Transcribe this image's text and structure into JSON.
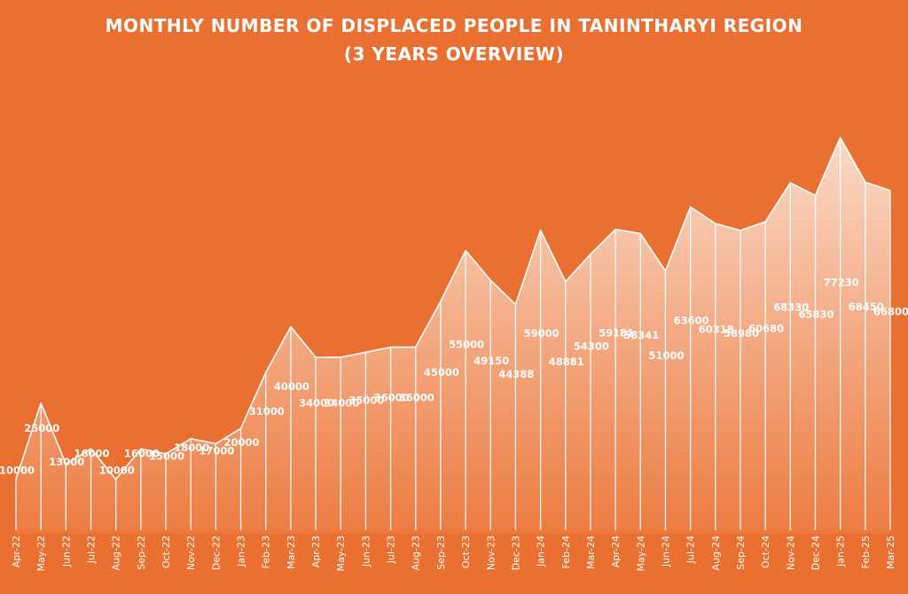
{
  "chart_data": {
    "type": "area",
    "title": "MONTHLY NUMBER OF DISPLACED PEOPLE IN TANINTHARYI REGION",
    "subtitle": "(3 YEARS OVERVIEW)",
    "categories": [
      "Apr-22",
      "May-22",
      "Jun-22",
      "Jul-22",
      "Aug-22",
      "Sep-22",
      "Oct-22",
      "Nov-22",
      "Dec-22",
      "Jan-23",
      "Feb-23",
      "Mar-23",
      "Apr-23",
      "May-23",
      "Jun-23",
      "Jul-23",
      "Aug-23",
      "Sep-23",
      "Oct-23",
      "Nov-23",
      "Dec-23",
      "Jan-24",
      "Feb-24",
      "Mar-24",
      "Apr-24",
      "May-24",
      "Jun-24",
      "Jul-24",
      "Aug-24",
      "Sep-24",
      "Oct-24",
      "Nov-24",
      "Dec-24",
      "Jan-25",
      "Feb-25",
      "Mar-25"
    ],
    "values": [
      10000,
      25000,
      13000,
      16000,
      10000,
      16000,
      15000,
      18000,
      17000,
      20000,
      31000,
      40000,
      34000,
      34000,
      35000,
      36000,
      36000,
      45000,
      55000,
      49150,
      44388,
      59000,
      48881,
      54300,
      59181,
      58341,
      51000,
      63600,
      60318,
      58980,
      60680,
      68330,
      65830,
      77230,
      68450,
      66800
    ],
    "labels": [
      "10000",
      "25000",
      "13000",
      "16000",
      "10000",
      "16000",
      "15000",
      "18000",
      "17000",
      "20000",
      "31000",
      "40000",
      "34000",
      "34000",
      "35000",
      "36000",
      "36000",
      "45000",
      "55000",
      "49150",
      "44388",
      "59000",
      "48881",
      "54300",
      "59181",
      "58341",
      "51000",
      "63600",
      "60318",
      "58980",
      "60680",
      "68330",
      "65830",
      "77230",
      "68450",
      "66800"
    ],
    "ylim": [
      0,
      90000
    ],
    "grid": false,
    "legend": "none",
    "colors": {
      "background": "#E97031",
      "area_top": "#FBE0D0",
      "area_bottom": "#ED7E45",
      "line": "#FFFFFF",
      "text": "#FFFFFF"
    }
  }
}
